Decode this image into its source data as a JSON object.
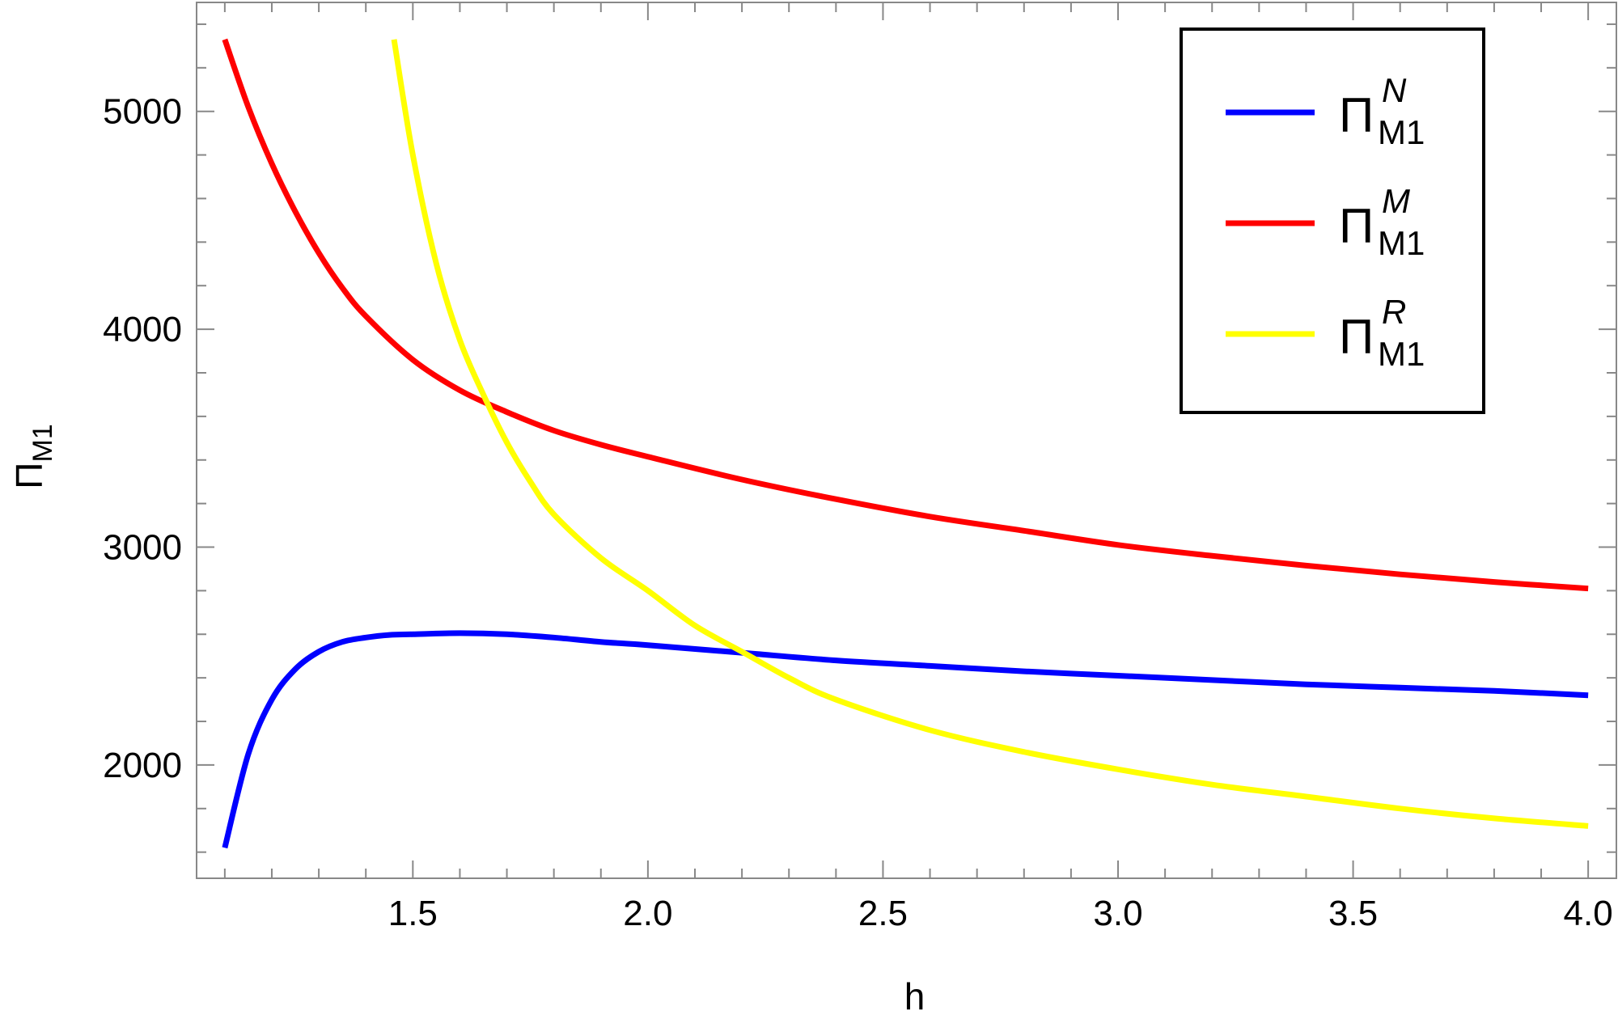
{
  "chart_data": {
    "type": "line",
    "title": "",
    "xlabel": "h",
    "ylabel": {
      "base": "Π",
      "sub": "M1"
    },
    "xlim": [
      1.04,
      4.06
    ],
    "ylim": [
      1480,
      5500
    ],
    "x_major_ticks": [
      1.5,
      2.0,
      2.5,
      3.0,
      3.5,
      4.0
    ],
    "x_tick_labels": [
      "1.5",
      "2.0",
      "2.5",
      "3.0",
      "3.5",
      "4.0"
    ],
    "x_minor_step": 0.1,
    "y_major_ticks": [
      2000,
      3000,
      4000,
      5000
    ],
    "y_tick_labels": [
      "2000",
      "3000",
      "4000",
      "5000"
    ],
    "y_minor_step": 200,
    "grid": false,
    "legend_position": "top-right",
    "series": [
      {
        "name": "Π^N_M1",
        "legend": {
          "base": "Π",
          "sup": "N",
          "sub": "M1"
        },
        "color": "#0000ff",
        "x": [
          1.1,
          1.15,
          1.2,
          1.25,
          1.3,
          1.35,
          1.4,
          1.45,
          1.5,
          1.6,
          1.7,
          1.8,
          1.9,
          2.0,
          2.2,
          2.4,
          2.6,
          2.8,
          3.0,
          3.2,
          3.4,
          3.6,
          3.8,
          4.0
        ],
        "y": [
          1620,
          2050,
          2300,
          2440,
          2520,
          2565,
          2585,
          2597,
          2600,
          2605,
          2600,
          2585,
          2565,
          2550,
          2515,
          2480,
          2455,
          2430,
          2410,
          2390,
          2370,
          2355,
          2340,
          2320
        ]
      },
      {
        "name": "Π^M_M1",
        "legend": {
          "base": "Π",
          "sup": "M",
          "sub": "M1"
        },
        "color": "#ff0000",
        "x": [
          1.1,
          1.15,
          1.2,
          1.25,
          1.3,
          1.35,
          1.4,
          1.5,
          1.6,
          1.7,
          1.8,
          1.9,
          2.0,
          2.2,
          2.4,
          2.6,
          2.8,
          3.0,
          3.2,
          3.4,
          3.6,
          3.8,
          4.0
        ],
        "y": [
          5330,
          5020,
          4760,
          4540,
          4350,
          4190,
          4060,
          3860,
          3720,
          3620,
          3535,
          3470,
          3415,
          3310,
          3220,
          3140,
          3075,
          3010,
          2960,
          2915,
          2875,
          2840,
          2810
        ]
      },
      {
        "name": "Π^R_M1",
        "legend": {
          "base": "Π",
          "sup": "R",
          "sub": "M1"
        },
        "color": "#ffff00",
        "x": [
          1.46,
          1.5,
          1.55,
          1.6,
          1.65,
          1.7,
          1.75,
          1.8,
          1.9,
          2.0,
          2.1,
          2.2,
          2.3,
          2.4,
          2.6,
          2.8,
          3.0,
          3.2,
          3.4,
          3.6,
          3.8,
          4.0
        ],
        "y": [
          5330,
          4800,
          4300,
          3950,
          3700,
          3480,
          3300,
          3150,
          2950,
          2800,
          2640,
          2520,
          2400,
          2300,
          2160,
          2060,
          1980,
          1910,
          1855,
          1800,
          1755,
          1720
        ]
      }
    ]
  }
}
